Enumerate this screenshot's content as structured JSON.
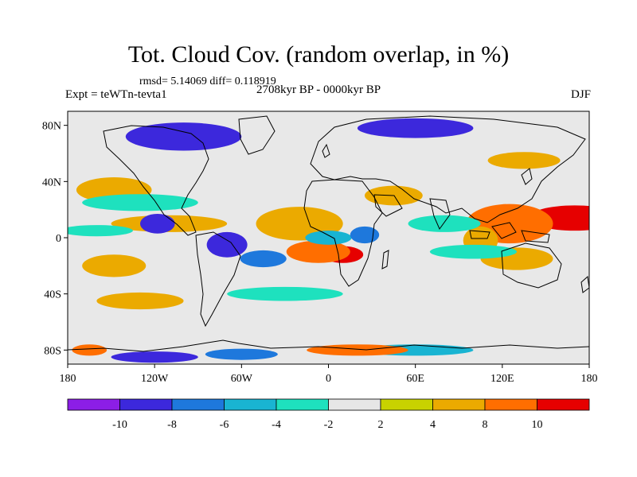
{
  "title": "Tot. Cloud Cov. (random overlap, in %)",
  "subtitle": "rmsd= 5.14069 diff= 0.118919",
  "left_label": "Expt = teWTn-tevta1",
  "center_label": "2708kyr BP - 0000kyr BP",
  "right_label": "DJF",
  "map": {
    "projection": "cylindrical-equidistant",
    "lon_range": [
      -180,
      180
    ],
    "lat_range": [
      -90,
      90
    ],
    "x_ticks": [
      {
        "value": -180,
        "label": "180"
      },
      {
        "value": -120,
        "label": "120W"
      },
      {
        "value": -60,
        "label": "60W"
      },
      {
        "value": 0,
        "label": "0"
      },
      {
        "value": 60,
        "label": "60E"
      },
      {
        "value": 120,
        "label": "120E"
      },
      {
        "value": 180,
        "label": "180"
      }
    ],
    "y_ticks": [
      {
        "value": 80,
        "label": "80N"
      },
      {
        "value": 40,
        "label": "40N"
      },
      {
        "value": 0,
        "label": "0"
      },
      {
        "value": -40,
        "label": "40S"
      },
      {
        "value": -80,
        "label": "80S"
      }
    ],
    "background_color": "#e8e8e8",
    "anomalies": [
      {
        "lon": 170,
        "lat": 14,
        "rx": 32,
        "ry": 9,
        "level": 10
      },
      {
        "lon": 125,
        "lat": 10,
        "rx": 30,
        "ry": 14,
        "level": 8
      },
      {
        "lon": 105,
        "lat": -2,
        "rx": 12,
        "ry": 10,
        "level": 6
      },
      {
        "lon": 10,
        "lat": -12,
        "rx": 14,
        "ry": 6,
        "level": 10
      },
      {
        "lon": -7,
        "lat": -10,
        "rx": 22,
        "ry": 8,
        "level": 8
      },
      {
        "lon": -20,
        "lat": 10,
        "rx": 30,
        "ry": 12,
        "level": 6
      },
      {
        "lon": -148,
        "lat": 34,
        "rx": 26,
        "ry": 9,
        "level": 6
      },
      {
        "lon": -110,
        "lat": 10,
        "rx": 40,
        "ry": 6,
        "level": 6
      },
      {
        "lon": 45,
        "lat": 30,
        "rx": 20,
        "ry": 7,
        "level": 4
      },
      {
        "lon": 130,
        "lat": -15,
        "rx": 25,
        "ry": 8,
        "level": 6
      },
      {
        "lon": -148,
        "lat": -20,
        "rx": 22,
        "ry": 8,
        "level": 6
      },
      {
        "lon": 135,
        "lat": 55,
        "rx": 25,
        "ry": 6,
        "level": 4
      },
      {
        "lon": -130,
        "lat": -45,
        "rx": 30,
        "ry": 6,
        "level": 4
      },
      {
        "lon": -118,
        "lat": 10,
        "rx": 12,
        "ry": 7,
        "level": -10
      },
      {
        "lon": -70,
        "lat": -5,
        "rx": 14,
        "ry": 9,
        "level": -10
      },
      {
        "lon": -45,
        "lat": -15,
        "rx": 16,
        "ry": 6,
        "level": -8
      },
      {
        "lon": 0,
        "lat": 0,
        "rx": 16,
        "ry": 5,
        "level": -6
      },
      {
        "lon": 25,
        "lat": 2,
        "rx": 10,
        "ry": 6,
        "level": -8
      },
      {
        "lon": -100,
        "lat": 72,
        "rx": 40,
        "ry": 10,
        "level": -10
      },
      {
        "lon": 60,
        "lat": 78,
        "rx": 40,
        "ry": 7,
        "level": -10
      },
      {
        "lon": -130,
        "lat": 25,
        "rx": 40,
        "ry": 6,
        "level": -4
      },
      {
        "lon": 80,
        "lat": 10,
        "rx": 25,
        "ry": 6,
        "level": -4
      },
      {
        "lon": -160,
        "lat": 5,
        "rx": 25,
        "ry": 4,
        "level": -4
      },
      {
        "lon": 100,
        "lat": -10,
        "rx": 30,
        "ry": 5,
        "level": -4
      },
      {
        "lon": -30,
        "lat": -40,
        "rx": 40,
        "ry": 5,
        "level": -4
      },
      {
        "lon": -120,
        "lat": -85,
        "rx": 30,
        "ry": 4,
        "level": -10
      },
      {
        "lon": -60,
        "lat": -83,
        "rx": 25,
        "ry": 4,
        "level": -8
      },
      {
        "lon": 60,
        "lat": -80,
        "rx": 40,
        "ry": 4,
        "level": -6
      },
      {
        "lon": 20,
        "lat": -80,
        "rx": 35,
        "ry": 4,
        "level": 8
      },
      {
        "lon": -165,
        "lat": -80,
        "rx": 12,
        "ry": 4,
        "level": 8
      }
    ]
  },
  "colorbar": {
    "boundaries": [
      "-10",
      "-8",
      "-6",
      "-4",
      "-2",
      "2",
      "4",
      "8",
      "10"
    ],
    "colors": [
      "#8c1ee6",
      "#3c28dc",
      "#1e78dc",
      "#19b4d2",
      "#1ee1be",
      "#e6e6e6",
      "#c8d200",
      "#ebaa00",
      "#ff6e00",
      "#e60000"
    ]
  }
}
